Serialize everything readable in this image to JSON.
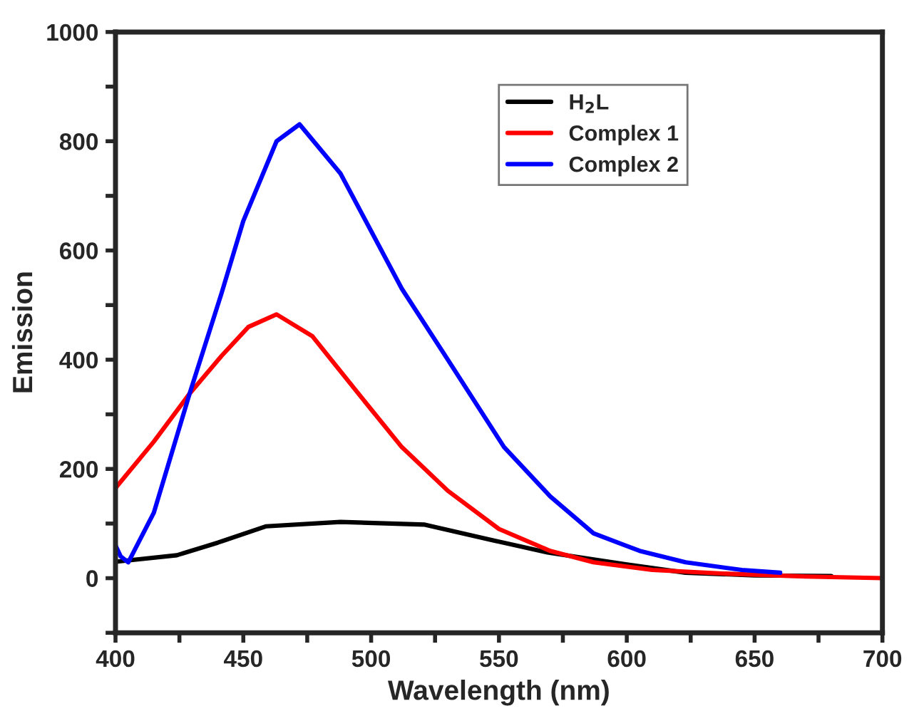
{
  "chart_data": {
    "type": "line",
    "xlabel": "Wavelength (nm)",
    "ylabel": "Emission",
    "xlim": [
      400,
      700
    ],
    "ylim": [
      -100,
      1000
    ],
    "xticks": [
      400,
      {
        "value": 425,
        "label": null
      },
      450,
      {
        "value": 475,
        "label": null
      },
      500,
      {
        "value": 525,
        "label": null
      },
      550,
      {
        "value": 575,
        "label": null
      },
      600,
      {
        "value": 625,
        "label": null
      },
      650,
      {
        "value": 675,
        "label": null
      },
      700
    ],
    "yticks": [
      {
        "value": -100,
        "label": null
      },
      0,
      {
        "value": 100,
        "label": null
      },
      200,
      {
        "value": 300,
        "label": null
      },
      400,
      {
        "value": 500,
        "label": null
      },
      600,
      {
        "value": 700,
        "label": null
      },
      800,
      {
        "value": 900,
        "label": null
      },
      1000
    ],
    "grid": false,
    "legend": "top right",
    "line_style": "solid",
    "marker": "none",
    "series": [
      {
        "name": "H$_{2}$L",
        "color": "#000000",
        "x": [
          400,
          424,
          440,
          459,
          488,
          521,
          548,
          569,
          600,
          623,
          650,
          680
        ],
        "values": [
          30,
          42,
          65,
          95,
          103,
          98,
          69,
          47,
          25,
          10,
          5,
          4
        ]
      },
      {
        "name": "Complex 1",
        "color": "#ff0000",
        "x": [
          400,
          415,
          429,
          441.5,
          452,
          463,
          477,
          495,
          512,
          530,
          550,
          570,
          587,
          610,
          640,
          670,
          700
        ],
        "values": [
          165,
          250,
          338,
          407,
          460,
          483,
          443,
          338,
          240,
          160,
          90,
          50,
          29,
          15,
          8,
          3,
          0
        ]
      },
      {
        "name": "Complex 2",
        "color": "#0000ff",
        "x": [
          400,
          402,
          405,
          415,
          429,
          441.5,
          450,
          463,
          472,
          488,
          512,
          530,
          552,
          570,
          587,
          605,
          623,
          645,
          660
        ],
        "values": [
          60,
          40,
          29,
          120,
          338,
          522,
          654,
          800,
          831,
          741,
          530,
          400,
          240,
          150,
          82,
          50,
          29,
          15,
          10
        ]
      }
    ]
  }
}
